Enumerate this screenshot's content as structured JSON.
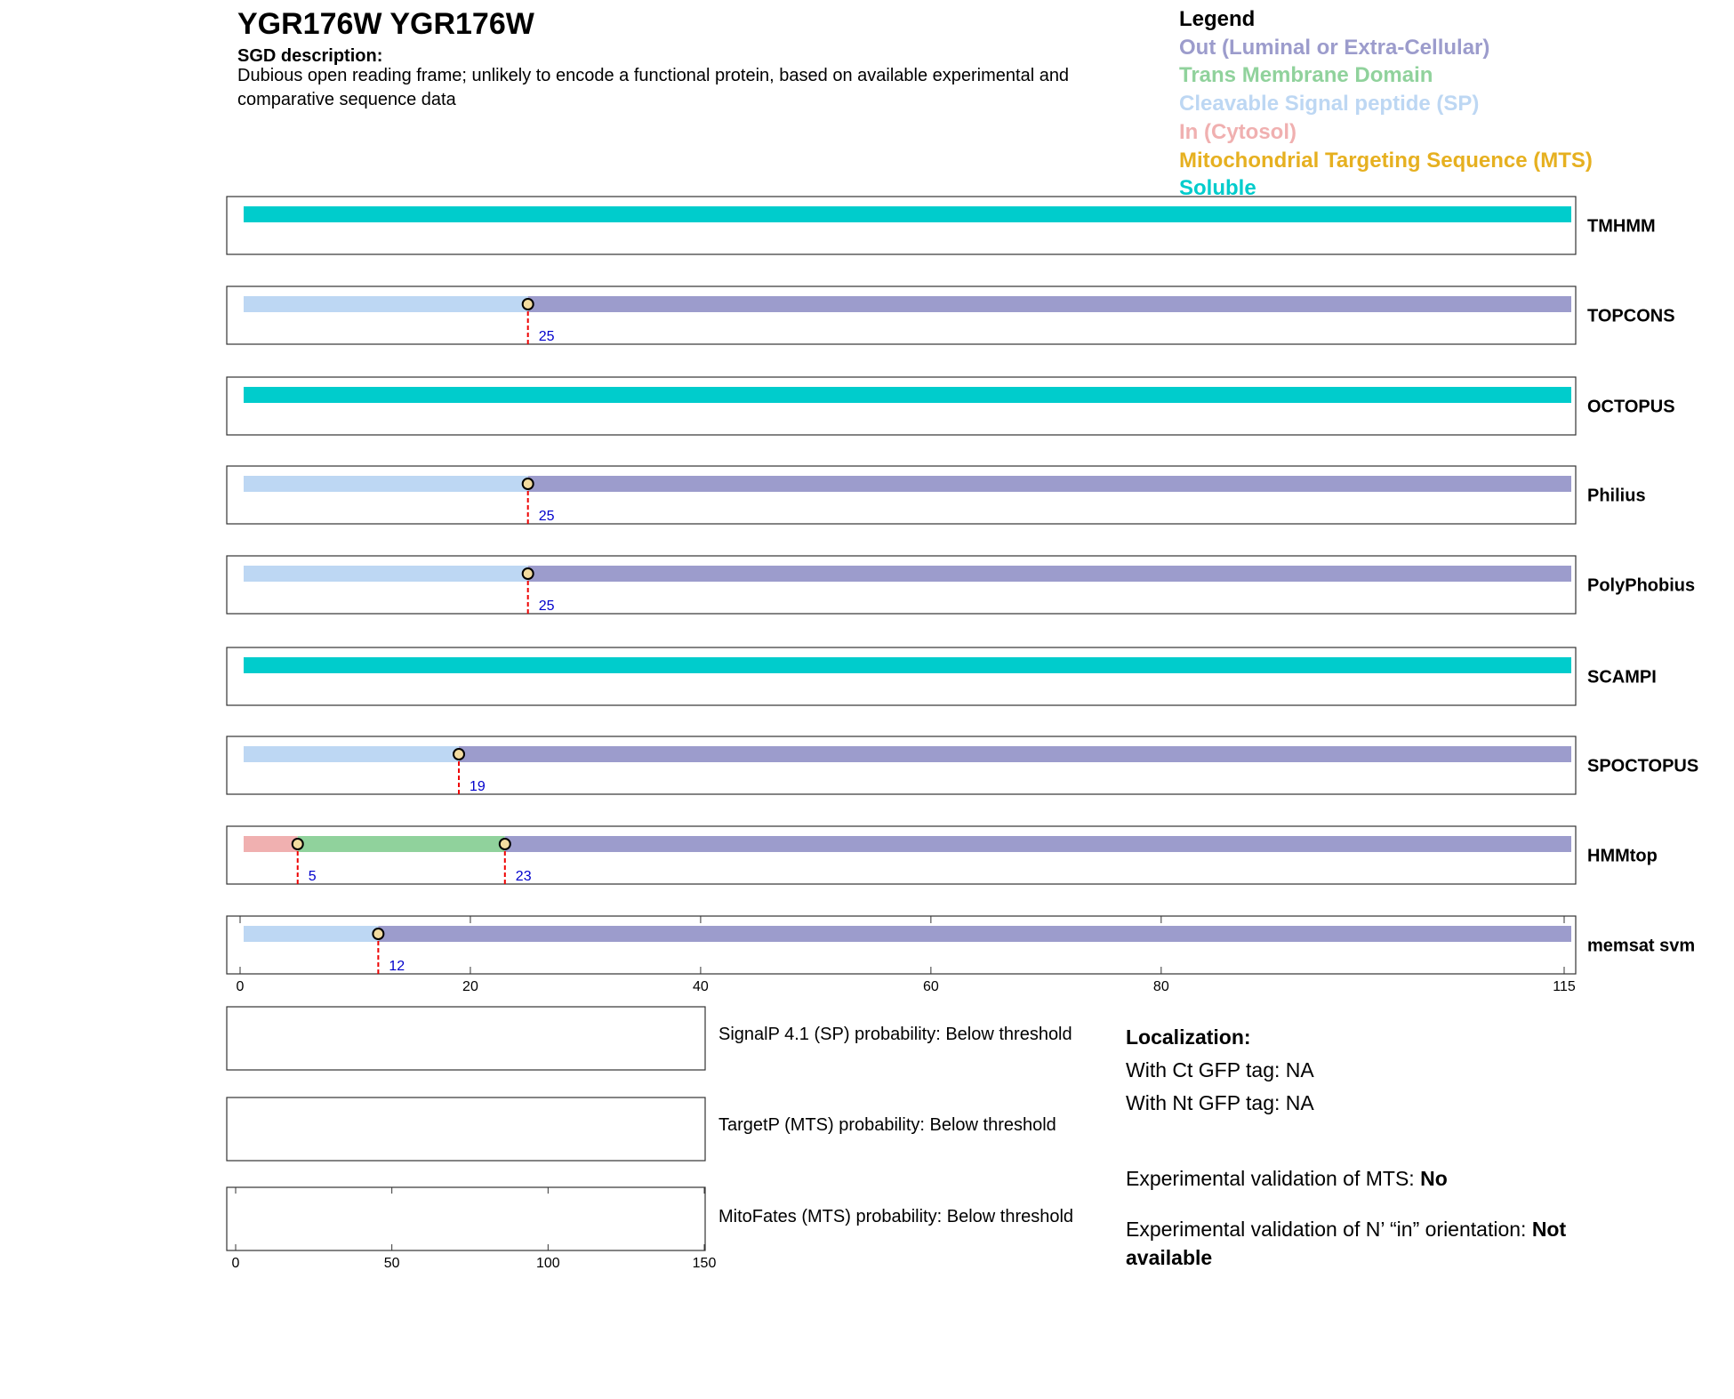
{
  "header": {
    "title": "YGR176W  YGR176W",
    "description_label": "SGD description:",
    "description": "Dubious open reading frame; unlikely to encode a functional protein, based on available experimental and comparative sequence data"
  },
  "legend": {
    "title": "Legend",
    "items": [
      {
        "label": "Out (Luminal or Extra-Cellular)",
        "color": "#9c9ccc"
      },
      {
        "label": "Trans Membrane Domain",
        "color": "#90d29c"
      },
      {
        "label": "Cleavable Signal peptide (SP)",
        "color": "#bdd7f3"
      },
      {
        "label": "In (Cytosol)",
        "color": "#f0b0b0"
      },
      {
        "label": "Mitochondrial Targeting Sequence (MTS)",
        "color": "#e6b020"
      },
      {
        "label": "Soluble",
        "color": "#00cccc"
      }
    ]
  },
  "chart_data": [
    {
      "type": "topology",
      "xlim": [
        0,
        115
      ],
      "xticks": [
        0,
        20,
        40,
        60,
        80,
        115
      ],
      "tracks": [
        {
          "name": "TMHMM",
          "boundaries": [],
          "colors": [
            "#00cccc"
          ]
        },
        {
          "name": "TOPCONS",
          "boundaries": [
            25
          ],
          "colors": [
            "#bdd7f3",
            "#9c9ccc"
          ]
        },
        {
          "name": "OCTOPUS",
          "boundaries": [],
          "colors": [
            "#00cccc"
          ]
        },
        {
          "name": "Philius",
          "boundaries": [
            25
          ],
          "colors": [
            "#bdd7f3",
            "#9c9ccc"
          ]
        },
        {
          "name": "PolyPhobius",
          "boundaries": [
            25
          ],
          "colors": [
            "#bdd7f3",
            "#9c9ccc"
          ]
        },
        {
          "name": "SCAMPI",
          "boundaries": [],
          "colors": [
            "#00cccc"
          ]
        },
        {
          "name": "SPOCTOPUS",
          "boundaries": [
            19
          ],
          "colors": [
            "#bdd7f3",
            "#9c9ccc"
          ]
        },
        {
          "name": "HMMtop",
          "boundaries": [
            5,
            23
          ],
          "colors": [
            "#f0b0b0",
            "#90d29c",
            "#9c9ccc"
          ]
        },
        {
          "name": "memsat svm",
          "boundaries": [
            12
          ],
          "colors": [
            "#bdd7f3",
            "#9c9ccc"
          ]
        }
      ]
    },
    {
      "type": "probability",
      "xlim": [
        0,
        150
      ],
      "xticks": [
        0,
        50,
        100,
        150
      ],
      "panels": [
        {
          "label": "SignalP 4.1 (SP) probability: Below threshold"
        },
        {
          "label": "TargetP (MTS) probability: Below threshold"
        },
        {
          "label": "MitoFates (MTS) probability: Below threshold"
        }
      ]
    }
  ],
  "localization": {
    "title": "Localization:",
    "ct": "With Ct GFP tag: NA",
    "nt": "With Nt GFP tag: NA",
    "mts_label": "Experimental validation of MTS: ",
    "mts_value": "No",
    "orientation_label": "Experimental validation of N’ “in” orientation: ",
    "orientation_value": "Not available"
  }
}
